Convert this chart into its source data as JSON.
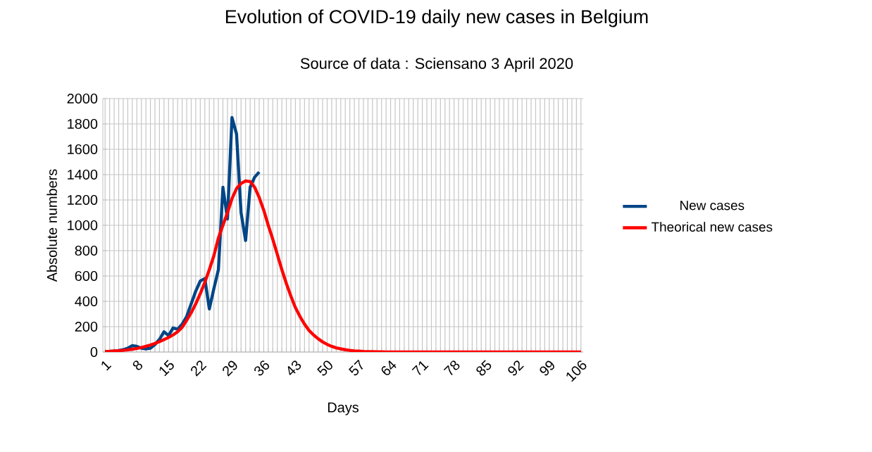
{
  "chart_data": {
    "type": "line",
    "title": "Evolution of COVID-19 daily new cases in Belgium",
    "subtitle": "Source of data : Sciensano 3 April 2020",
    "xlabel": "Days",
    "ylabel": "Absolute numbers",
    "categories": [
      "1",
      null,
      null,
      null,
      null,
      null,
      null,
      "8",
      null,
      null,
      null,
      null,
      null,
      null,
      "15",
      null,
      null,
      null,
      null,
      null,
      null,
      "22",
      null,
      null,
      null,
      null,
      null,
      null,
      "29",
      null,
      null,
      null,
      null,
      null,
      null,
      "36",
      null,
      null,
      null,
      null,
      null,
      null,
      "43",
      null,
      null,
      null,
      null,
      null,
      null,
      "50",
      null,
      null,
      null,
      null,
      null,
      null,
      "57",
      null,
      null,
      null,
      null,
      null,
      null,
      "64",
      null,
      null,
      null,
      null,
      null,
      null,
      "71",
      null,
      null,
      null,
      null,
      null,
      null,
      "78",
      null,
      null,
      null,
      null,
      null,
      null,
      "85",
      null,
      null,
      null,
      null,
      null,
      null,
      "92",
      null,
      null,
      null,
      null,
      null,
      null,
      "99",
      null,
      null,
      null,
      null,
      null,
      null,
      "106"
    ],
    "series": [
      {
        "name": "New cases",
        "color": "#004586",
        "values": [
          2,
          5,
          8,
          12,
          18,
          30,
          50,
          45,
          30,
          25,
          30,
          60,
          100,
          160,
          130,
          190,
          180,
          220,
          280,
          380,
          480,
          560,
          580,
          340,
          500,
          650,
          1300,
          1050,
          1850,
          1720,
          1100,
          880,
          1300,
          1380,
          1420,
          null,
          null,
          null,
          null,
          null,
          null,
          null,
          null,
          null,
          null,
          null,
          null,
          null,
          null,
          null,
          null,
          null,
          null,
          null,
          null,
          null,
          null,
          null,
          null,
          null,
          null,
          null,
          null,
          null,
          null,
          null,
          null,
          null,
          null,
          null,
          null,
          null,
          null,
          null,
          null,
          null,
          null,
          null,
          null,
          null,
          null,
          null,
          null,
          null,
          null,
          null,
          null,
          null,
          null,
          null,
          null,
          null,
          null,
          null,
          null,
          null,
          null,
          null,
          null,
          null,
          null,
          null,
          null,
          null,
          null,
          null
        ]
      },
      {
        "name": "Theorical new cases",
        "color": "#ff0000",
        "values": [
          5,
          6,
          8,
          10,
          13,
          17,
          22,
          28,
          35,
          45,
          55,
          68,
          82,
          98,
          115,
          135,
          160,
          195,
          250,
          310,
          380,
          460,
          550,
          650,
          760,
          900,
          1000,
          1100,
          1210,
          1290,
          1330,
          1350,
          1345,
          1300,
          1220,
          1120,
          1000,
          890,
          770,
          650,
          540,
          440,
          350,
          280,
          220,
          170,
          135,
          105,
          80,
          60,
          45,
          33,
          25,
          18,
          13,
          9,
          7,
          5,
          4,
          3,
          2,
          2,
          1,
          1,
          0,
          0,
          0,
          0,
          0,
          0,
          0,
          0,
          0,
          0,
          0,
          0,
          0,
          0,
          0,
          0,
          0,
          0,
          0,
          0,
          0,
          0,
          0,
          0,
          0,
          0,
          0,
          0,
          0,
          0,
          0,
          0,
          0,
          0,
          0,
          0,
          0,
          0,
          0,
          0,
          0,
          0
        ]
      }
    ],
    "ylim": [
      0,
      2000
    ],
    "yticks": [
      0,
      200,
      400,
      600,
      800,
      1000,
      1200,
      1400,
      1600,
      1800,
      2000
    ],
    "grid": true,
    "legend": "right",
    "marker": "none",
    "line_style": "solid"
  }
}
